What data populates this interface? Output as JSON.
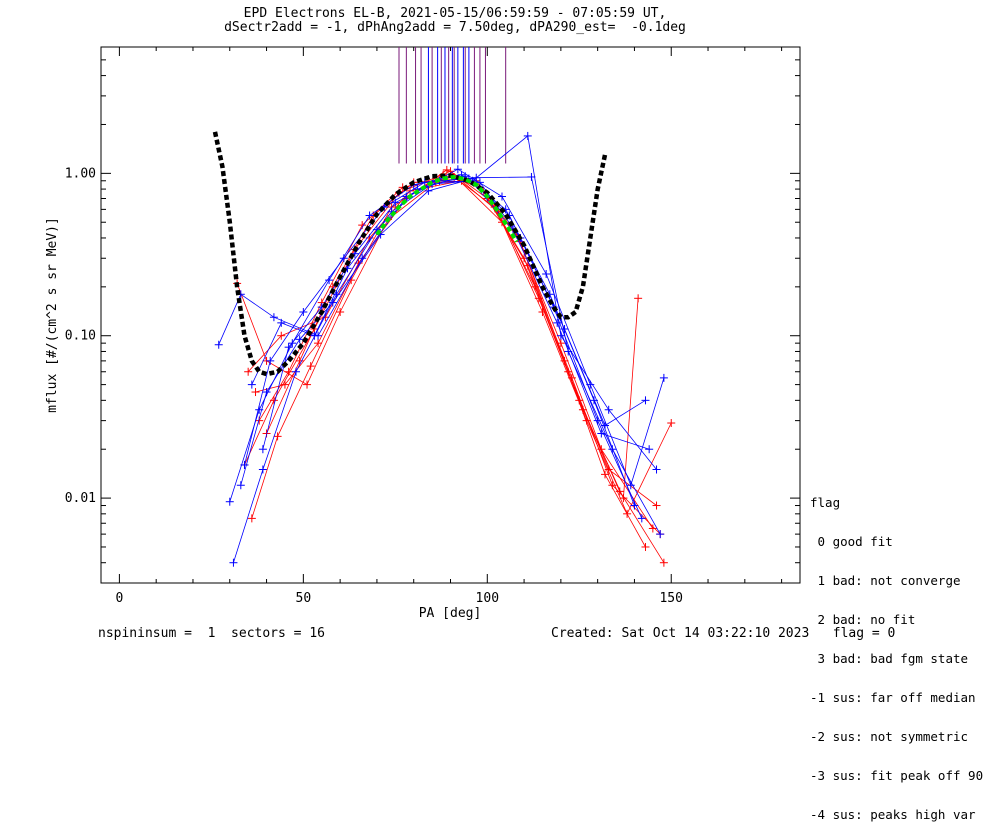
{
  "header": {
    "title_line1": "EPD Electrons EL-B, 2021-05-15/06:59:59 - 07:05:59 UT,",
    "title_line2": "dSectr2add = -1, dPhAng2add = 7.50deg, dPA290_est=  -0.1deg"
  },
  "footer": {
    "left": "nspininsum =  1  sectors = 16",
    "right": "Created: Sat Oct 14 03:22:10 2023   flag = 0"
  },
  "legend": {
    "title": "flag",
    "items": [
      " 0 good fit",
      " 1 bad: not converge",
      " 2 bad: no fit",
      " 3 bad: bad fgm state",
      "-1 sus: far off median",
      "-2 sus: not symmetric",
      "-3 sus: fit peak off 90",
      "-4 sus: peaks high var"
    ]
  },
  "chart_data": {
    "type": "line",
    "xlabel": "PA [deg]",
    "ylabel": "mflux [#/(cm^2 s sr MeV)]",
    "xlim": [
      -5,
      185
    ],
    "ylim": [
      0.003,
      6
    ],
    "yscale": "log",
    "xticks": [
      0,
      50,
      100,
      150
    ],
    "xtick_labels": [
      "0",
      "50",
      "100",
      "150"
    ],
    "yticks": [
      0.01,
      0.1,
      1.0
    ],
    "ytick_labels": [
      "0.01",
      "0.10",
      "1.00"
    ],
    "colors": {
      "red": "#ff0000",
      "blue": "#0000ff",
      "fit_black": "#000000",
      "fit_green": "#00e000",
      "vline_purple": "#7a1a7a"
    },
    "series": [
      {
        "color": "red",
        "x": [
          36,
          43,
          52,
          63,
          74,
          88,
          98,
          109,
          121,
          132,
          143
        ],
        "y": [
          0.0075,
          0.024,
          0.065,
          0.22,
          0.62,
          0.98,
          0.82,
          0.38,
          0.07,
          0.014,
          0.005
        ]
      },
      {
        "color": "red",
        "x": [
          34,
          42,
          53,
          64,
          76,
          90,
          100,
          111,
          123,
          134,
          147
        ],
        "y": [
          0.016,
          0.04,
          0.11,
          0.34,
          0.76,
          1.03,
          0.7,
          0.27,
          0.055,
          0.012,
          0.006
        ]
      },
      {
        "color": "red",
        "x": [
          38,
          46,
          55,
          66,
          77,
          91,
          102,
          113,
          125,
          136,
          148
        ],
        "y": [
          0.03,
          0.06,
          0.16,
          0.48,
          0.82,
          0.95,
          0.62,
          0.2,
          0.04,
          0.011,
          0.004
        ]
      },
      {
        "color": "red",
        "x": [
          32,
          40,
          51,
          60,
          73,
          86,
          97,
          108,
          120,
          131,
          145
        ],
        "y": [
          0.21,
          0.07,
          0.05,
          0.14,
          0.52,
          0.88,
          0.9,
          0.42,
          0.09,
          0.02,
          0.0065
        ]
      },
      {
        "color": "red",
        "x": [
          40,
          49,
          58,
          69,
          80,
          92,
          104,
          115,
          127,
          138,
          150
        ],
        "y": [
          0.025,
          0.07,
          0.2,
          0.55,
          0.88,
          0.92,
          0.5,
          0.14,
          0.03,
          0.008,
          0.029
        ]
      },
      {
        "color": "red",
        "x": [
          37,
          45,
          54,
          65,
          78,
          89,
          99,
          110,
          122,
          133,
          146
        ],
        "y": [
          0.045,
          0.05,
          0.09,
          0.28,
          0.7,
          1.05,
          0.78,
          0.3,
          0.06,
          0.015,
          0.009
        ]
      },
      {
        "color": "red",
        "x": [
          35,
          44,
          56,
          68,
          79,
          93,
          103,
          114,
          126,
          137,
          141
        ],
        "y": [
          0.06,
          0.1,
          0.13,
          0.4,
          0.78,
          0.9,
          0.58,
          0.17,
          0.035,
          0.01,
          0.17
        ]
      },
      {
        "color": "blue",
        "x": [
          27,
          33,
          42,
          54,
          66,
          78,
          92,
          104,
          116,
          128,
          139,
          148
        ],
        "y": [
          0.088,
          0.18,
          0.13,
          0.1,
          0.3,
          0.72,
          1.06,
          0.72,
          0.24,
          0.05,
          0.012,
          0.055
        ]
      },
      {
        "color": "blue",
        "x": [
          30,
          38,
          47,
          57,
          68,
          80,
          93,
          105,
          117,
          129,
          140
        ],
        "y": [
          0.0095,
          0.035,
          0.09,
          0.22,
          0.55,
          0.85,
          0.98,
          0.6,
          0.18,
          0.04,
          0.009
        ]
      },
      {
        "color": "blue",
        "x": [
          31,
          39,
          48,
          59,
          70,
          81,
          94,
          106,
          118,
          130,
          142
        ],
        "y": [
          0.004,
          0.015,
          0.06,
          0.18,
          0.45,
          0.8,
          0.96,
          0.55,
          0.15,
          0.03,
          0.0075
        ]
      },
      {
        "color": "blue",
        "x": [
          34,
          41,
          50,
          61,
          72,
          83,
          95,
          107,
          119,
          131,
          144
        ],
        "y": [
          0.016,
          0.07,
          0.14,
          0.3,
          0.62,
          0.88,
          0.93,
          0.45,
          0.12,
          0.025,
          0.02
        ]
      },
      {
        "color": "blue",
        "x": [
          36,
          44,
          53,
          62,
          74,
          85,
          96,
          111,
          120,
          133,
          146
        ],
        "y": [
          0.05,
          0.12,
          0.1,
          0.26,
          0.58,
          0.86,
          0.9,
          1.7,
          0.1,
          0.035,
          0.015
        ]
      },
      {
        "color": "blue",
        "x": [
          33,
          40,
          49,
          58,
          71,
          84,
          97,
          112,
          122,
          134,
          147
        ],
        "y": [
          0.012,
          0.045,
          0.095,
          0.16,
          0.42,
          0.78,
          0.94,
          0.95,
          0.08,
          0.02,
          0.006
        ]
      },
      {
        "color": "blue",
        "x": [
          39,
          46,
          55,
          64,
          75,
          87,
          98,
          109,
          121,
          132,
          143
        ],
        "y": [
          0.02,
          0.085,
          0.15,
          0.32,
          0.66,
          0.9,
          0.88,
          0.4,
          0.11,
          0.028,
          0.04
        ]
      }
    ],
    "fit_curve_black": {
      "x": [
        26,
        28,
        30,
        32,
        34,
        36,
        38,
        40,
        43,
        46,
        50,
        55,
        60,
        65,
        70,
        75,
        80,
        85,
        90,
        95,
        100,
        105,
        110,
        115,
        118,
        120,
        122,
        124,
        126,
        128,
        130,
        132
      ],
      "y": [
        1.8,
        1.1,
        0.5,
        0.2,
        0.1,
        0.07,
        0.06,
        0.058,
        0.06,
        0.07,
        0.09,
        0.14,
        0.23,
        0.37,
        0.56,
        0.74,
        0.88,
        0.96,
        0.97,
        0.9,
        0.76,
        0.56,
        0.36,
        0.2,
        0.15,
        0.13,
        0.13,
        0.14,
        0.2,
        0.4,
        0.8,
        1.3
      ]
    },
    "fit_curve_green": {
      "x": [
        70,
        73,
        76,
        79,
        82,
        85,
        88,
        91,
        94,
        97,
        100,
        103,
        106,
        108
      ],
      "y": [
        0.42,
        0.52,
        0.62,
        0.72,
        0.8,
        0.88,
        0.93,
        0.95,
        0.92,
        0.85,
        0.72,
        0.58,
        0.45,
        0.38
      ]
    },
    "vertical_lines": {
      "y_bottom": 1.15,
      "x_blue": [
        84,
        86.5,
        88.5,
        90.5,
        92,
        93.5,
        95
      ],
      "x_purple": [
        76,
        78,
        80.5,
        82,
        85,
        87.5,
        89.5,
        91,
        94,
        96.5,
        98,
        99.5,
        105
      ]
    }
  }
}
